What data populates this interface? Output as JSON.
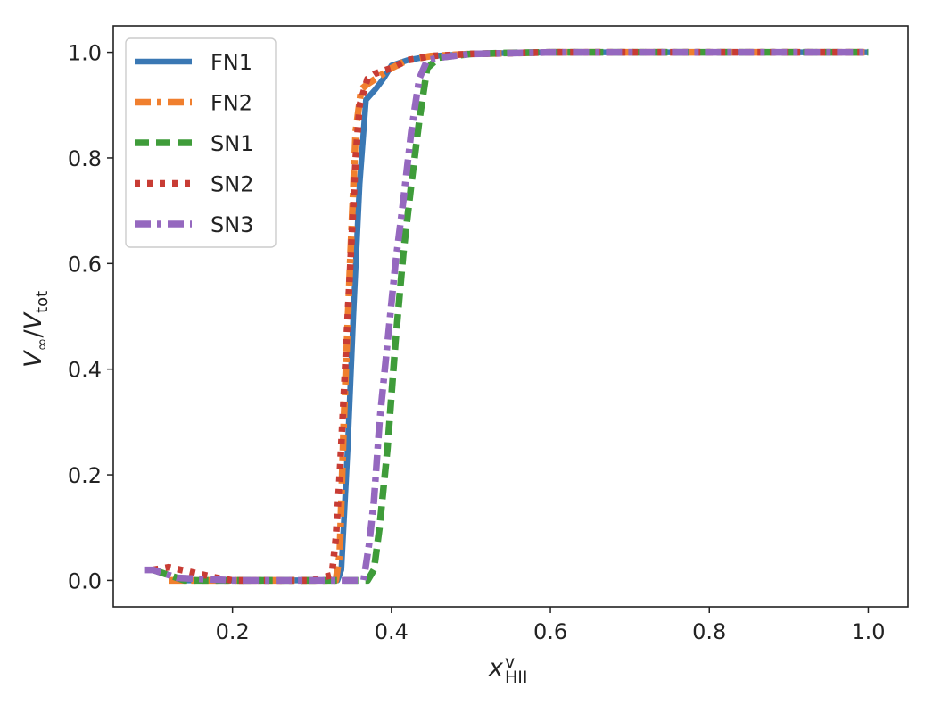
{
  "chart_data": {
    "type": "line",
    "title": "",
    "xlabel": {
      "base": "x",
      "sub": "HII",
      "sup": "v"
    },
    "ylabel": {
      "num": "V",
      "num_sub": "∞",
      "den": "V",
      "den_sub": "tot"
    },
    "xlim": [
      0.05,
      1.05
    ],
    "ylim": [
      -0.05,
      1.05
    ],
    "xticks": [
      0.2,
      0.4,
      0.6,
      0.8,
      1.0
    ],
    "xtick_labels": [
      "0.2",
      "0.4",
      "0.6",
      "0.8",
      "1.0"
    ],
    "yticks": [
      0.0,
      0.2,
      0.4,
      0.6,
      0.8,
      1.0
    ],
    "ytick_labels": [
      "0.0",
      "0.2",
      "0.4",
      "0.6",
      "0.8",
      "1.0"
    ],
    "grid": false,
    "legend_position": "top-left",
    "series": [
      {
        "name": "FN1",
        "color": "#3a78b4",
        "style": "solid",
        "x": [
          0.13,
          0.2,
          0.3,
          0.332,
          0.337,
          0.345,
          0.352,
          0.36,
          0.368,
          0.38,
          0.39,
          0.4,
          0.42,
          0.45,
          0.5,
          0.55,
          0.6,
          0.7,
          0.8,
          0.9,
          1.0
        ],
        "y": [
          0.0,
          0.0,
          0.0,
          0.0,
          0.02,
          0.25,
          0.5,
          0.75,
          0.91,
          0.93,
          0.95,
          0.975,
          0.985,
          0.993,
          0.997,
          0.999,
          1.0,
          1.0,
          1.0,
          1.0,
          1.0
        ]
      },
      {
        "name": "FN2",
        "color": "#f07f2e",
        "style": "dashdot",
        "x": [
          0.12,
          0.2,
          0.3,
          0.33,
          0.335,
          0.34,
          0.348,
          0.355,
          0.362,
          0.37,
          0.38,
          0.4,
          0.42,
          0.45,
          0.5,
          0.6,
          0.7,
          0.8,
          0.9,
          1.0
        ],
        "y": [
          0.0,
          0.0,
          0.0,
          0.0,
          0.05,
          0.3,
          0.6,
          0.85,
          0.93,
          0.94,
          0.95,
          0.97,
          0.985,
          0.993,
          0.997,
          1.0,
          1.0,
          1.0,
          1.0,
          1.0
        ]
      },
      {
        "name": "SN1",
        "color": "#3f9c3a",
        "style": "dashed",
        "x": [
          0.1,
          0.12,
          0.14,
          0.2,
          0.3,
          0.37,
          0.378,
          0.385,
          0.395,
          0.405,
          0.415,
          0.425,
          0.435,
          0.445,
          0.46,
          0.5,
          0.55,
          0.6,
          0.7,
          0.8,
          0.9,
          1.0
        ],
        "y": [
          0.02,
          0.01,
          0.0,
          0.0,
          0.0,
          0.0,
          0.02,
          0.1,
          0.25,
          0.45,
          0.62,
          0.75,
          0.87,
          0.97,
          0.99,
          0.997,
          0.999,
          1.0,
          1.0,
          1.0,
          1.0,
          1.0
        ]
      },
      {
        "name": "SN2",
        "color": "#c83c34",
        "style": "dotted",
        "x": [
          0.1,
          0.12,
          0.15,
          0.18,
          0.2,
          0.3,
          0.325,
          0.33,
          0.335,
          0.34,
          0.345,
          0.35,
          0.355,
          0.36,
          0.37,
          0.38,
          0.39,
          0.4,
          0.42,
          0.45,
          0.5,
          0.6,
          0.7,
          0.8,
          0.9,
          1.0
        ],
        "y": [
          0.02,
          0.025,
          0.015,
          0.005,
          0.0,
          0.0,
          0.01,
          0.08,
          0.2,
          0.35,
          0.5,
          0.65,
          0.8,
          0.9,
          0.95,
          0.96,
          0.965,
          0.97,
          0.985,
          0.993,
          0.997,
          1.0,
          1.0,
          1.0,
          1.0,
          1.0
        ]
      },
      {
        "name": "SN3",
        "color": "#9568bf",
        "style": "dashdot",
        "x": [
          0.09,
          0.1,
          0.11,
          0.13,
          0.2,
          0.3,
          0.365,
          0.372,
          0.378,
          0.385,
          0.395,
          0.405,
          0.415,
          0.425,
          0.435,
          0.445,
          0.46,
          0.5,
          0.6,
          0.7,
          0.8,
          0.9,
          1.0
        ],
        "y": [
          0.02,
          0.02,
          0.015,
          0.005,
          0.0,
          0.0,
          0.0,
          0.07,
          0.15,
          0.3,
          0.45,
          0.6,
          0.72,
          0.85,
          0.95,
          0.985,
          0.99,
          0.997,
          1.0,
          1.0,
          1.0,
          1.0,
          1.0
        ]
      }
    ]
  }
}
